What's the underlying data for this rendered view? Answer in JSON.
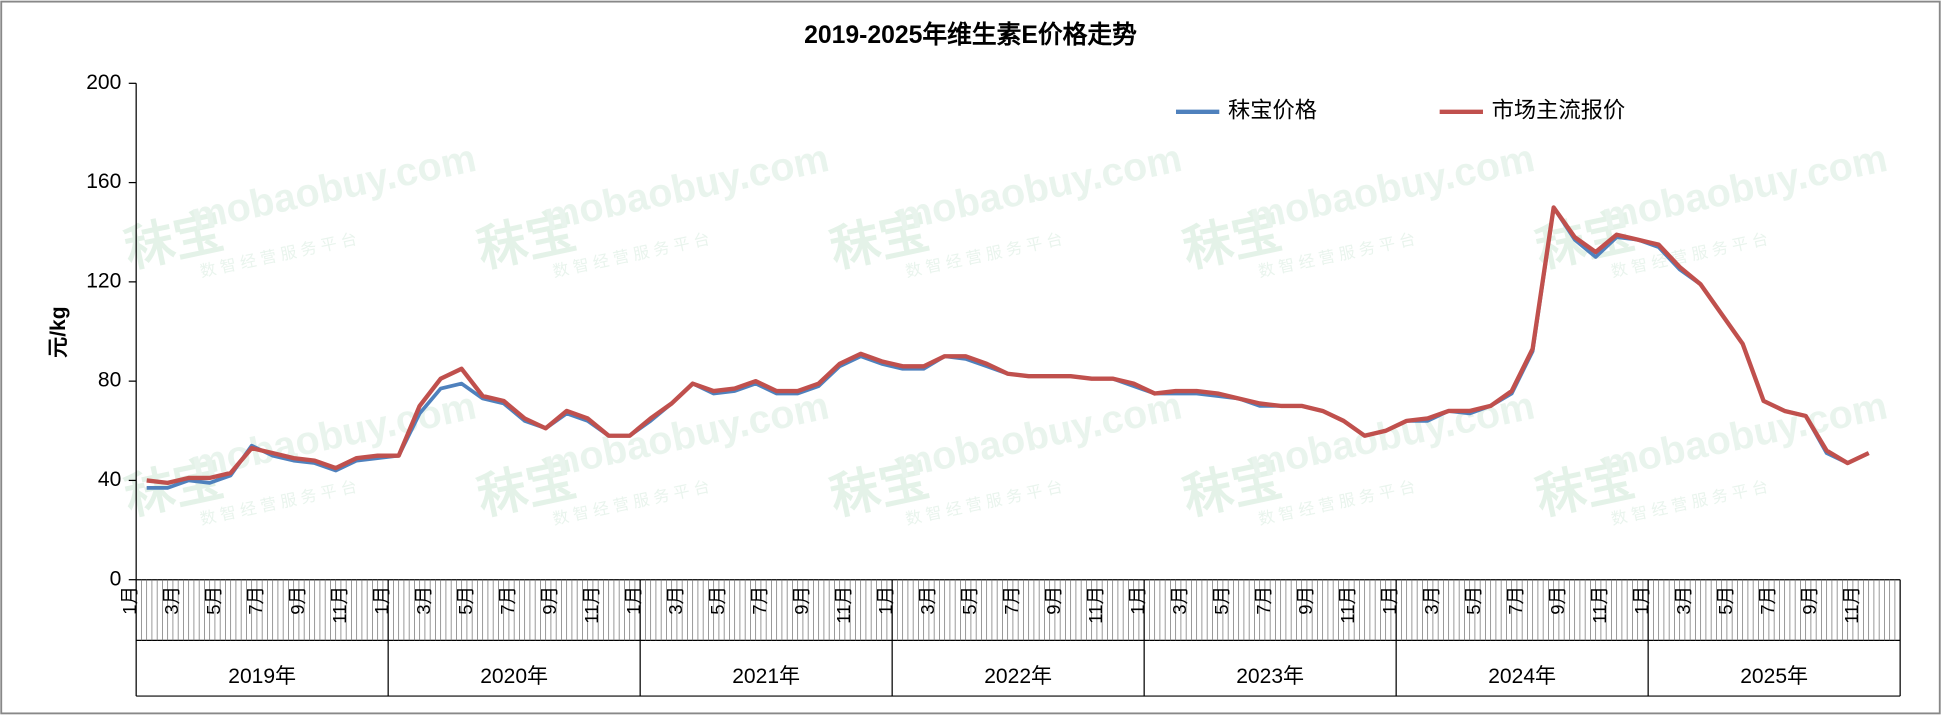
{
  "chart_data": {
    "type": "line",
    "title": "2019-2025年维生素E价格走势",
    "y_label": "元/kg",
    "ylim": [
      0,
      200
    ],
    "yticks": [
      0,
      40,
      80,
      120,
      160,
      200
    ],
    "grid": false,
    "legend": "top-right",
    "categories": [
      "1月",
      null,
      "3月",
      null,
      "5月",
      null,
      "7月",
      null,
      "9月",
      null,
      "11月",
      null,
      "1月",
      null,
      "3月",
      null,
      "5月",
      null,
      "7月",
      null,
      "9月",
      null,
      "11月",
      null,
      "1月",
      null,
      "3月",
      null,
      "5月",
      null,
      "7月",
      null,
      "9月",
      null,
      "11月",
      null,
      "1月",
      null,
      "3月",
      null,
      "5月",
      null,
      "7月",
      null,
      "9月",
      null,
      "11月",
      null,
      "1月",
      null,
      "3月",
      null,
      "5月",
      null,
      "7月",
      null,
      "9月",
      null,
      "11月",
      null,
      "1月",
      null,
      "3月",
      null,
      "5月",
      null,
      "7月",
      null,
      "9月",
      null,
      "11月",
      null,
      "1月",
      null,
      "3月",
      null,
      "5月",
      null,
      "7月",
      null,
      "9月",
      null,
      "11月",
      null
    ],
    "year_groups": [
      "2019年",
      "2020年",
      "2021年",
      "2022年",
      "2023年",
      "2024年",
      "2025年"
    ],
    "series": [
      {
        "name": "秣宝价格",
        "color": "#4f81bd",
        "values": [
          37,
          37,
          40,
          39,
          42,
          54,
          50,
          48,
          47,
          44,
          48,
          49,
          50,
          67,
          77,
          79,
          73,
          71,
          64,
          61,
          67,
          64,
          58,
          58,
          64,
          71,
          79,
          75,
          76,
          79,
          75,
          75,
          78,
          86,
          90,
          87,
          85,
          85,
          90,
          89,
          86,
          83,
          82,
          82,
          82,
          81,
          81,
          78,
          75,
          75,
          75,
          74,
          73,
          70,
          70,
          70,
          68,
          64,
          58,
          60,
          64,
          64,
          68,
          67,
          70,
          75,
          92,
          150,
          137,
          130,
          138,
          137,
          134,
          125,
          119,
          107,
          95,
          72,
          68,
          66,
          51,
          47,
          51,
          null
        ]
      },
      {
        "name": "市场主流报价",
        "color": "#c0504d",
        "values": [
          40,
          39,
          41,
          41,
          43,
          53,
          51,
          49,
          48,
          45,
          49,
          50,
          50,
          70,
          81,
          85,
          74,
          72,
          65,
          61,
          68,
          65,
          58,
          58,
          65,
          71,
          79,
          76,
          77,
          80,
          76,
          76,
          79,
          87,
          91,
          88,
          86,
          86,
          90,
          90,
          87,
          83,
          82,
          82,
          82,
          81,
          81,
          79,
          75,
          76,
          76,
          75,
          73,
          71,
          70,
          70,
          68,
          64,
          58,
          60,
          64,
          65,
          68,
          68,
          70,
          76,
          93,
          150,
          138,
          132,
          139,
          137,
          135,
          126,
          119,
          107,
          95,
          72,
          68,
          66,
          52,
          47,
          51,
          null
        ]
      }
    ]
  },
  "watermark": {
    "logo": "秣宝",
    "domain": "mobaobuy.com",
    "tagline": "数 智 经 营 服 务 平 台"
  }
}
